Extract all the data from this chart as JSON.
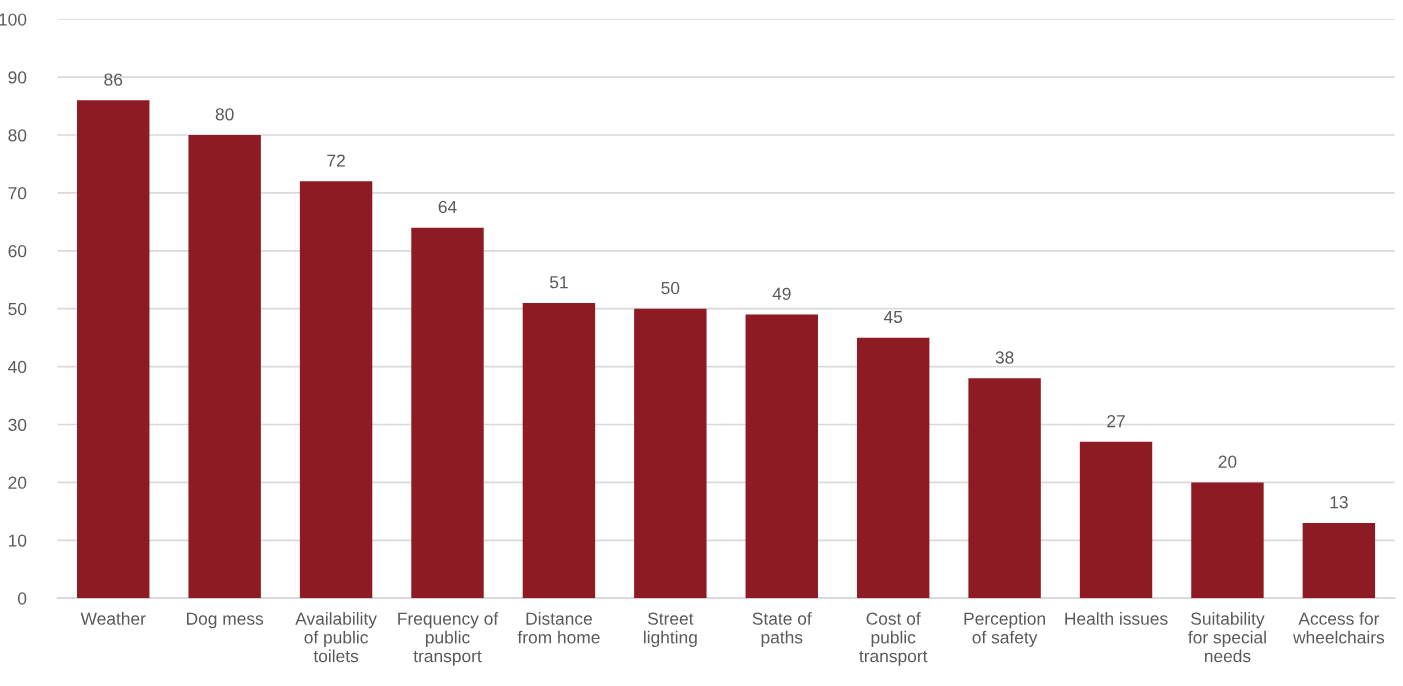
{
  "chart_data": {
    "type": "bar",
    "categories": [
      "Weather",
      "Dog mess",
      "Availability\nof public\ntoilets",
      "Frequency of\npublic\ntransport",
      "Distance\nfrom home",
      "Street\nlighting",
      "State of\npaths",
      "Cost of\npublic\ntransport",
      "Perception\nof safety",
      "Health issues",
      "Suitability\nfor special\nneeds",
      "Access for\nwheelchairs"
    ],
    "values": [
      86,
      80,
      72,
      64,
      51,
      50,
      49,
      45,
      38,
      27,
      20,
      13
    ],
    "color": "#8e1a24",
    "ylim": [
      0,
      100
    ],
    "yticks": [
      0,
      10,
      20,
      30,
      40,
      50,
      60,
      70,
      80,
      90,
      100
    ],
    "grid": "y",
    "data_labels": true,
    "legend": false
  }
}
